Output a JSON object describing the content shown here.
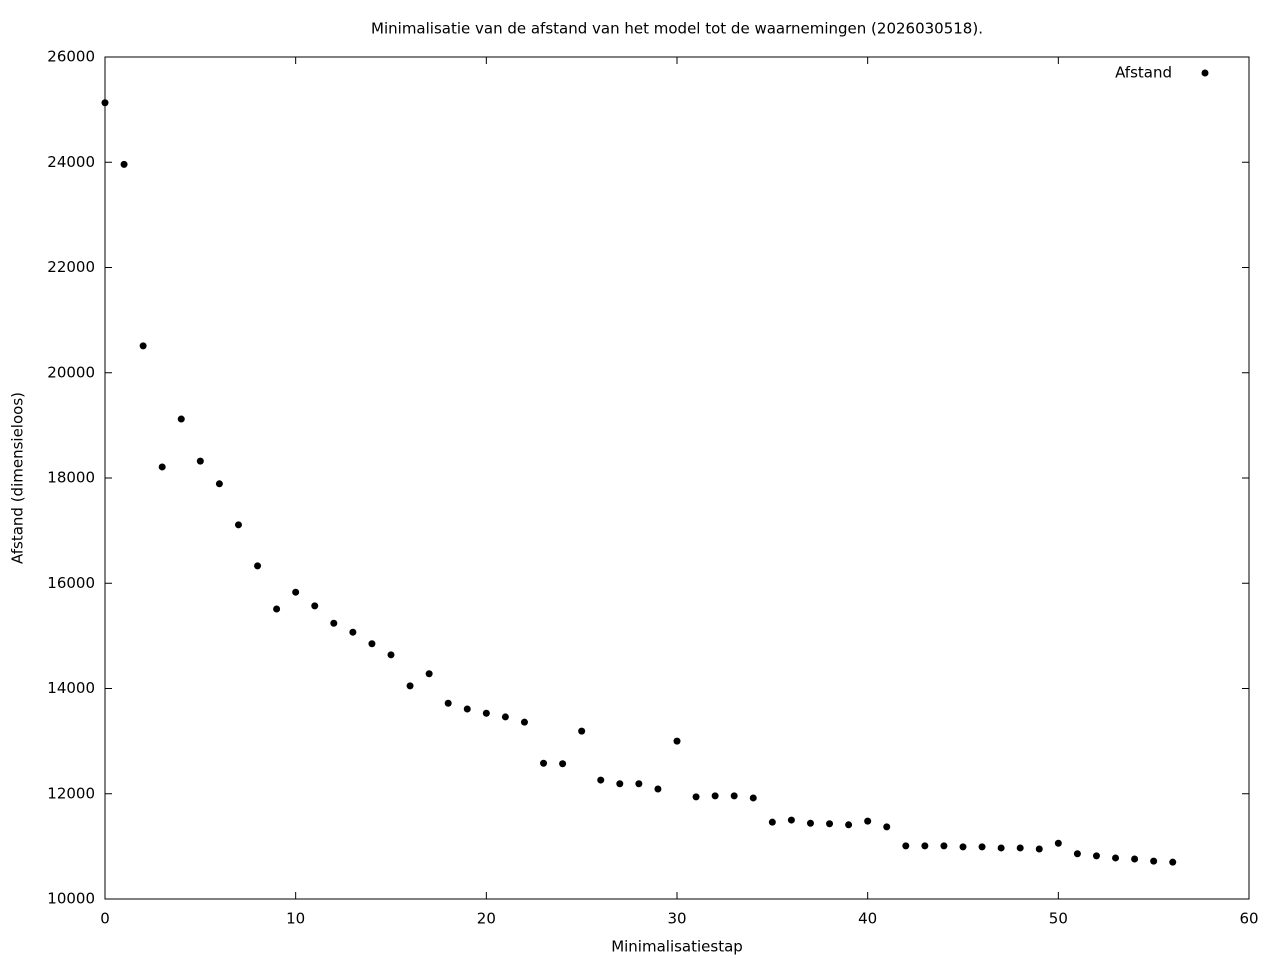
{
  "chart_data": {
    "type": "scatter",
    "title": "Minimalisatie van de afstand van het model tot de waarnemingen (2026030518).",
    "x_label": "Minimalisatiestap",
    "y_label": "Afstand (dimensieloos)",
    "x": [
      0,
      1,
      2,
      3,
      4,
      5,
      6,
      7,
      8,
      9,
      10,
      11,
      12,
      13,
      14,
      15,
      16,
      17,
      18,
      19,
      20,
      21,
      22,
      23,
      24,
      25,
      26,
      27,
      28,
      29,
      30,
      31,
      32,
      33,
      34,
      35,
      36,
      37,
      38,
      39,
      40,
      41,
      42,
      43,
      44,
      45,
      46,
      47,
      48,
      49,
      50,
      51,
      52,
      53,
      54,
      55,
      56
    ],
    "series": [
      {
        "name": "Afstand",
        "color": "#000000",
        "values": [
          25130,
          23960,
          20510,
          18210,
          19120,
          18320,
          17890,
          17110,
          16330,
          15510,
          15830,
          15570,
          15240,
          15070,
          14850,
          14640,
          14050,
          14280,
          13720,
          13610,
          13530,
          13460,
          13360,
          12580,
          12570,
          13190,
          12260,
          12190,
          12190,
          12090,
          13000,
          11940,
          11960,
          11960,
          11920,
          11460,
          11500,
          11440,
          11430,
          11410,
          11480,
          11370,
          11010,
          11010,
          11010,
          10990,
          10990,
          10970,
          10970,
          10950,
          11060,
          10860,
          10820,
          10780,
          10760,
          10720,
          10700
        ]
      }
    ],
    "xlim": [
      0,
      60
    ],
    "xticks": [
      0,
      10,
      20,
      30,
      40,
      50,
      60
    ],
    "ylim": [
      10000,
      26000
    ],
    "yticks": [
      10000,
      12000,
      14000,
      16000,
      18000,
      20000,
      22000,
      24000,
      26000
    ],
    "grid": false,
    "legend": "top-right"
  }
}
